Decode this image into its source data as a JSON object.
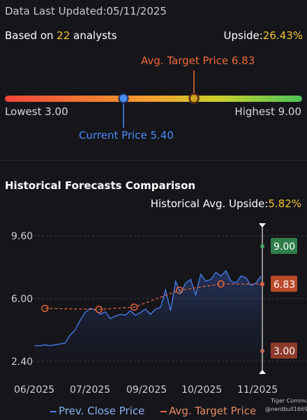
{
  "header": {
    "updated_label": "Data Last Updated:",
    "updated_date": "05/11/2025",
    "based_prefix": "Based on ",
    "analyst_count": "22",
    "based_suffix": " analysts",
    "upside_label": "Upside:",
    "upside_value": "26.43%"
  },
  "range": {
    "lowest_label": "Lowest 3.00",
    "highest_label": "Highest 9.00",
    "current_label": "Current Price 5.40",
    "avg_target_label": "Avg. Target Price 6.83",
    "low": 3.0,
    "high": 9.0,
    "current": 5.4,
    "target": 6.83,
    "gradient_colors": [
      "#f0453a",
      "#f2a12e",
      "#c9cf2a",
      "#4cc45a"
    ],
    "current_color": "#4a8cf5",
    "target_color": "#f06a3a"
  },
  "historical": {
    "title": "Historical Forecasts Comparison",
    "upside_label": "Historical Avg. Upside:",
    "upside_value": "5.82%"
  },
  "legend": {
    "price_label": "Prev. Close Price",
    "target_label": "Avg. Target Price"
  },
  "watermark": {
    "brand": "Tiger Community",
    "user": "@nerdbull1669"
  },
  "chart_data": {
    "type": "line",
    "ylim": [
      2.4,
      9.6
    ],
    "yticks": [
      "9.60",
      "6.00",
      "2.40"
    ],
    "x_labels": [
      "06/2025",
      "07/2025",
      "09/2025",
      "10/2025",
      "11/2025"
    ],
    "x_range": [
      "2025-05-08",
      "2025-11-05"
    ],
    "x_label_dates": [
      "2025-05-15",
      "2025-07-01",
      "2025-08-26",
      "2025-10-07",
      "2025-11-01"
    ],
    "series": [
      {
        "name": "Prev. Close Price",
        "color": "#4a7ef0",
        "dates": [
          "2025-05-08",
          "2025-05-12",
          "2025-05-16",
          "2025-05-20",
          "2025-05-24",
          "2025-05-28",
          "2025-06-01",
          "2025-06-05",
          "2025-06-09",
          "2025-06-13",
          "2025-06-17",
          "2025-06-21",
          "2025-06-25",
          "2025-06-29",
          "2025-07-03",
          "2025-07-07",
          "2025-07-11",
          "2025-07-15",
          "2025-07-19",
          "2025-07-23",
          "2025-07-27",
          "2025-07-31",
          "2025-08-04",
          "2025-08-08",
          "2025-08-12",
          "2025-08-16",
          "2025-08-20",
          "2025-08-24",
          "2025-08-28",
          "2025-09-01",
          "2025-09-05",
          "2025-09-09",
          "2025-09-13",
          "2025-09-17",
          "2025-09-21",
          "2025-09-25",
          "2025-09-29",
          "2025-10-03",
          "2025-10-07",
          "2025-10-11",
          "2025-10-15",
          "2025-10-19",
          "2025-10-23",
          "2025-10-27",
          "2025-10-31",
          "2025-11-04"
        ],
        "values": [
          3.3,
          3.3,
          3.35,
          3.3,
          3.35,
          3.4,
          3.45,
          3.9,
          4.2,
          4.75,
          5.2,
          5.45,
          5.35,
          5.1,
          5.25,
          4.85,
          5.0,
          5.1,
          5.05,
          5.3,
          5.05,
          5.2,
          5.4,
          5.1,
          5.4,
          5.5,
          6.5,
          5.3,
          7.0,
          6.3,
          6.9,
          7.1,
          6.2,
          7.4,
          7.0,
          7.1,
          7.5,
          7.3,
          7.6,
          7.0,
          6.9,
          7.3,
          7.2,
          6.75,
          6.9,
          7.3
        ]
      },
      {
        "name": "Avg. Target Price",
        "color": "#e0663a",
        "dates": [
          "2025-05-16",
          "2025-06-28",
          "2025-07-26",
          "2025-08-31",
          "2025-10-03",
          "2025-11-05"
        ],
        "values": [
          5.44,
          5.38,
          5.51,
          6.48,
          6.84,
          6.83
        ]
      }
    ],
    "end_markers": [
      {
        "label": "9.00",
        "value": 9.0,
        "color": "#2e7d4a"
      },
      {
        "label": "6.83",
        "value": 6.83,
        "color": "#b94a2a"
      },
      {
        "label": "3.00",
        "value": 3.0,
        "color": "#8c3a2a"
      }
    ]
  }
}
